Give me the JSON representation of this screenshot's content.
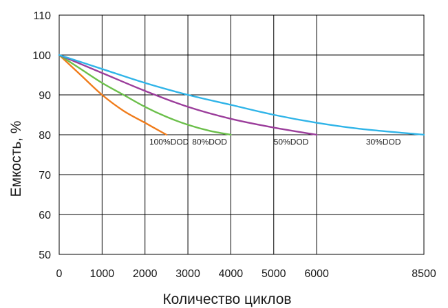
{
  "chart_data": {
    "type": "line",
    "title": "",
    "xlabel": "Количество циклов",
    "ylabel": "Емкость, %",
    "xlim": [
      0,
      8500
    ],
    "ylim": [
      50,
      110
    ],
    "grid": true,
    "legend": "none",
    "x_ticks": [
      {
        "value": 0,
        "label": "0"
      },
      {
        "value": 1000,
        "label": "1000"
      },
      {
        "value": 2000,
        "label": "2000"
      },
      {
        "value": 3000,
        "label": "3000"
      },
      {
        "value": 4000,
        "label": "4000"
      },
      {
        "value": 5000,
        "label": "5000"
      },
      {
        "value": 6000,
        "label": "6000"
      },
      {
        "value": 8500,
        "label": "8500"
      }
    ],
    "y_ticks": [
      {
        "value": 50,
        "label": "50"
      },
      {
        "value": 60,
        "label": "60"
      },
      {
        "value": 70,
        "label": "70"
      },
      {
        "value": 80,
        "label": "80"
      },
      {
        "value": 90,
        "label": "90"
      },
      {
        "value": 100,
        "label": "100"
      },
      {
        "value": 110,
        "label": "110"
      }
    ],
    "series": [
      {
        "name": "100%DOD",
        "color": "#f07c1b",
        "x": [
          0,
          500,
          1000,
          1500,
          2000,
          2500
        ],
        "y": [
          100,
          95,
          90,
          86,
          83,
          80
        ],
        "label_at": [
          2100,
          78
        ]
      },
      {
        "name": "80%DOD",
        "color": "#6bbf4a",
        "x": [
          0,
          500,
          1000,
          1500,
          2000,
          2500,
          3000,
          3500,
          4000
        ],
        "y": [
          100,
          96.5,
          93,
          90,
          87,
          84.5,
          82.5,
          81,
          80
        ],
        "label_at": [
          3100,
          78
        ]
      },
      {
        "name": "50%DOD",
        "color": "#9b3d9b",
        "x": [
          0,
          1000,
          2000,
          3000,
          4000,
          5000,
          6000
        ],
        "y": [
          100,
          95.5,
          91,
          87,
          84,
          81.8,
          80
        ],
        "label_at": [
          5000,
          78
        ]
      },
      {
        "name": "30%DOD",
        "color": "#2fb4e8",
        "x": [
          0,
          1000,
          2000,
          3000,
          4000,
          5000,
          6000,
          7000,
          8500
        ],
        "y": [
          100,
          96.5,
          93,
          90,
          87.5,
          85,
          83,
          81.5,
          80
        ],
        "label_at": [
          7150,
          78
        ]
      }
    ]
  }
}
